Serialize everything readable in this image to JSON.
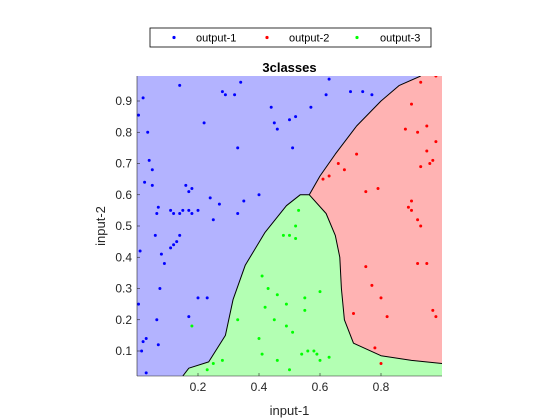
{
  "chart_data": {
    "type": "scatter",
    "title": "3classes",
    "xlabel": "input-1",
    "ylabel": "input-2",
    "xlim": [
      0.0,
      1.0
    ],
    "ylim": [
      0.02,
      0.98
    ],
    "xticks": [
      0.2,
      0.4,
      0.6,
      0.8
    ],
    "xtick_labels": [
      "0.2",
      "0.4",
      "0.6",
      "0.8"
    ],
    "yticks": [
      0.1,
      0.2,
      0.3,
      0.4,
      0.5,
      0.6,
      0.7,
      0.8,
      0.9
    ],
    "ytick_labels": [
      "0.1",
      "0.2",
      "0.3",
      "0.4",
      "0.5",
      "0.6",
      "0.7",
      "0.8",
      "0.9"
    ],
    "grid": false,
    "legend_position": "top (outside, horizontal)",
    "colors": {
      "output-1": "#0000ff",
      "output-2": "#ff0000",
      "output-3": "#00ff00",
      "region-1": "#b3b3ff",
      "region-2": "#ffb3b3",
      "region-3": "#b3ffb3",
      "boundary": "#000000"
    },
    "regions": {
      "boundary_1_2": [
        [
          0.565,
          0.6
        ],
        [
          0.6,
          0.66
        ],
        [
          0.65,
          0.73
        ],
        [
          0.72,
          0.82
        ],
        [
          0.8,
          0.9
        ],
        [
          0.86,
          0.95
        ],
        [
          0.93,
          0.98
        ]
      ],
      "boundary_1_3": [
        [
          0.15,
          0.02
        ],
        [
          0.17,
          0.045
        ],
        [
          0.235,
          0.065
        ],
        [
          0.29,
          0.15
        ],
        [
          0.315,
          0.265
        ],
        [
          0.355,
          0.375
        ],
        [
          0.42,
          0.48
        ],
        [
          0.49,
          0.565
        ],
        [
          0.535,
          0.6
        ],
        [
          0.565,
          0.6
        ]
      ],
      "boundary_2_3": [
        [
          0.565,
          0.6
        ],
        [
          0.62,
          0.54
        ],
        [
          0.65,
          0.47
        ],
        [
          0.665,
          0.4
        ],
        [
          0.67,
          0.3
        ],
        [
          0.68,
          0.2
        ],
        [
          0.71,
          0.125
        ],
        [
          0.8,
          0.085
        ],
        [
          0.9,
          0.07
        ],
        [
          1.0,
          0.06
        ]
      ]
    },
    "series": [
      {
        "name": "output-1",
        "points": [
          [
            0.005,
            0.855
          ],
          [
            0.02,
            0.91
          ],
          [
            0.035,
            0.8
          ],
          [
            0.04,
            0.71
          ],
          [
            0.05,
            0.68
          ],
          [
            0.025,
            0.64
          ],
          [
            0.05,
            0.63
          ],
          [
            0.065,
            0.54
          ],
          [
            0.07,
            0.56
          ],
          [
            0.06,
            0.47
          ],
          [
            0.01,
            0.42
          ],
          [
            0.08,
            0.41
          ],
          [
            0.09,
            0.38
          ],
          [
            0.075,
            0.3
          ],
          [
            0.005,
            0.25
          ],
          [
            0.065,
            0.2
          ],
          [
            0.03,
            0.14
          ],
          [
            0.02,
            0.13
          ],
          [
            0.015,
            0.1
          ],
          [
            0.07,
            0.12
          ],
          [
            0.03,
            0.03
          ],
          [
            0.11,
            0.55
          ],
          [
            0.12,
            0.54
          ],
          [
            0.14,
            0.54
          ],
          [
            0.15,
            0.55
          ],
          [
            0.17,
            0.55
          ],
          [
            0.18,
            0.54
          ],
          [
            0.2,
            0.55
          ],
          [
            0.12,
            0.44
          ],
          [
            0.13,
            0.45
          ],
          [
            0.11,
            0.43
          ],
          [
            0.14,
            0.47
          ],
          [
            0.17,
            0.61
          ],
          [
            0.18,
            0.62
          ],
          [
            0.16,
            0.63
          ],
          [
            0.24,
            0.59
          ],
          [
            0.2,
            0.27
          ],
          [
            0.23,
            0.27
          ],
          [
            0.17,
            0.21
          ],
          [
            0.27,
            0.57
          ],
          [
            0.25,
            0.52
          ],
          [
            0.33,
            0.54
          ],
          [
            0.35,
            0.58
          ],
          [
            0.4,
            0.6
          ],
          [
            0.14,
            0.95
          ],
          [
            0.22,
            0.83
          ],
          [
            0.28,
            0.93
          ],
          [
            0.29,
            0.92
          ],
          [
            0.32,
            0.92
          ],
          [
            0.33,
            0.75
          ],
          [
            0.34,
            0.96
          ],
          [
            0.44,
            0.88
          ],
          [
            0.45,
            0.83
          ],
          [
            0.46,
            0.81
          ],
          [
            0.5,
            0.84
          ],
          [
            0.52,
            0.85
          ],
          [
            0.51,
            0.75
          ],
          [
            0.57,
            0.88
          ],
          [
            0.62,
            0.92
          ],
          [
            0.63,
            0.97
          ],
          [
            0.7,
            0.93
          ],
          [
            0.74,
            0.93
          ],
          [
            0.77,
            0.92
          ]
        ]
      },
      {
        "name": "output-2",
        "points": [
          [
            0.98,
            0.98
          ],
          [
            0.93,
            0.96
          ],
          [
            0.9,
            0.89
          ],
          [
            0.88,
            0.81
          ],
          [
            0.92,
            0.8
          ],
          [
            0.95,
            0.82
          ],
          [
            0.98,
            0.77
          ],
          [
            0.95,
            0.74
          ],
          [
            0.96,
            0.7
          ],
          [
            0.97,
            0.71
          ],
          [
            0.93,
            0.69
          ],
          [
            0.61,
            0.65
          ],
          [
            0.63,
            0.66
          ],
          [
            0.66,
            0.7
          ],
          [
            0.68,
            0.68
          ],
          [
            0.72,
            0.73
          ],
          [
            0.75,
            0.61
          ],
          [
            0.79,
            0.62
          ],
          [
            0.89,
            0.56
          ],
          [
            0.9,
            0.55
          ],
          [
            0.9,
            0.58
          ],
          [
            0.92,
            0.52
          ],
          [
            0.93,
            0.5
          ],
          [
            0.92,
            0.38
          ],
          [
            0.95,
            0.38
          ],
          [
            0.75,
            0.37
          ],
          [
            0.77,
            0.31
          ],
          [
            0.8,
            0.27
          ],
          [
            0.82,
            0.21
          ],
          [
            0.98,
            0.21
          ],
          [
            0.97,
            0.23
          ],
          [
            0.71,
            0.22
          ],
          [
            0.78,
            0.11
          ],
          [
            0.8,
            0.06
          ]
        ]
      },
      {
        "name": "output-3",
        "points": [
          [
            0.52,
            0.5
          ],
          [
            0.53,
            0.55
          ],
          [
            0.5,
            0.47
          ],
          [
            0.48,
            0.47
          ],
          [
            0.52,
            0.46
          ],
          [
            0.41,
            0.34
          ],
          [
            0.43,
            0.3
          ],
          [
            0.46,
            0.28
          ],
          [
            0.55,
            0.27
          ],
          [
            0.49,
            0.25
          ],
          [
            0.6,
            0.29
          ],
          [
            0.42,
            0.24
          ],
          [
            0.45,
            0.2
          ],
          [
            0.4,
            0.14
          ],
          [
            0.41,
            0.09
          ],
          [
            0.46,
            0.07
          ],
          [
            0.5,
            0.04
          ],
          [
            0.56,
            0.1
          ],
          [
            0.58,
            0.1
          ],
          [
            0.59,
            0.09
          ],
          [
            0.54,
            0.09
          ],
          [
            0.6,
            0.07
          ],
          [
            0.63,
            0.08
          ],
          [
            0.33,
            0.2
          ],
          [
            0.28,
            0.07
          ],
          [
            0.25,
            0.06
          ],
          [
            0.23,
            0.04
          ],
          [
            0.18,
            0.18
          ],
          [
            0.51,
            0.16
          ],
          [
            0.49,
            0.18
          ],
          [
            0.55,
            0.23
          ]
        ]
      }
    ]
  }
}
